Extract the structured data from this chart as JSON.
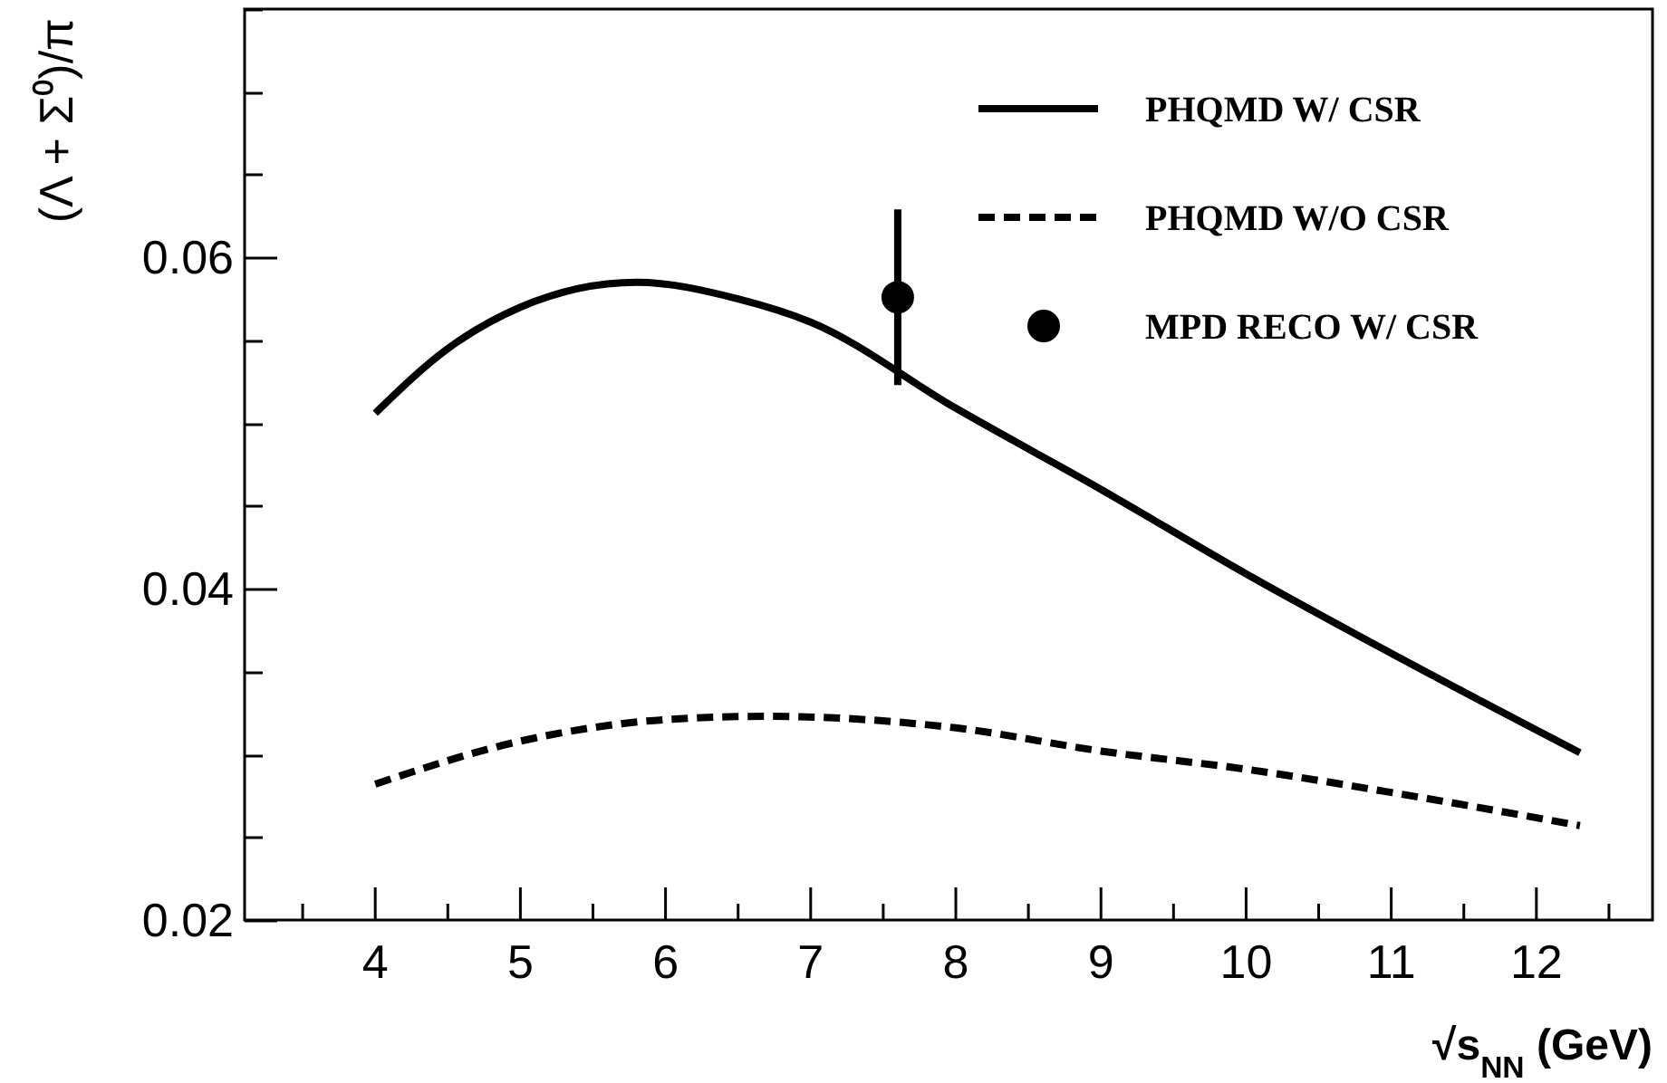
{
  "chart_data": {
    "type": "line",
    "xlabel": "√s$_{NN}$ (GeV)",
    "ylabel": "(Λ + Σ⁰)/π",
    "xlim": [
      3.1,
      12.8
    ],
    "ylim": [
      0.02,
      0.075
    ],
    "xticks": [
      {
        "value": 3.5,
        "label": null
      },
      4,
      {
        "value": 4.5,
        "label": null
      },
      5,
      {
        "value": 5.5,
        "label": null
      },
      6,
      {
        "value": 6.5,
        "label": null
      },
      7,
      {
        "value": 7.5,
        "label": null
      },
      8,
      {
        "value": 8.5,
        "label": null
      },
      9,
      {
        "value": 9.5,
        "label": null
      },
      10,
      {
        "value": 10.5,
        "label": null
      },
      11,
      {
        "value": 11.5,
        "label": null
      },
      12,
      {
        "value": 12.5,
        "label": null
      }
    ],
    "yticks": [
      0.02,
      {
        "value": 0.025,
        "label": null
      },
      {
        "value": 0.03,
        "label": null
      },
      {
        "value": 0.035,
        "label": null
      },
      0.04,
      {
        "value": 0.045,
        "label": null
      },
      {
        "value": 0.05,
        "label": null
      },
      {
        "value": 0.055,
        "label": null
      },
      0.06,
      {
        "value": 0.065,
        "label": null
      },
      {
        "value": 0.07,
        "label": null
      },
      {
        "value": 0.075,
        "label": null
      }
    ],
    "legend": "top right",
    "grid": false,
    "series": [
      {
        "name": "PHQMD W/  CSR",
        "type": "line",
        "color": "#000000",
        "line_style": "solid",
        "marker": "none",
        "x": [
          4,
          4.5,
          5,
          5.8,
          6.5,
          7,
          8,
          9,
          10,
          11,
          12.3
        ],
        "values": [
          0.0506,
          0.0545,
          0.057,
          0.0585,
          0.0575,
          0.0561,
          0.0509,
          0.046,
          0.0409,
          0.0361,
          0.0301
        ]
      },
      {
        "name": "PHQMD W/O CSR",
        "type": "line",
        "color": "#000000",
        "line_style": "dashed",
        "marker": "none",
        "x": [
          4,
          5,
          6,
          6.7,
          8,
          9,
          10,
          11,
          12.3
        ],
        "values": [
          0.0282,
          0.0308,
          0.0321,
          0.0323,
          0.0316,
          0.0302,
          0.0291,
          0.0277,
          0.0257
        ]
      },
      {
        "name": "MPD RECO W/  CSR",
        "type": "scatter",
        "color": "#000000",
        "marker": "circle",
        "x": [
          7.6
        ],
        "values": [
          0.0576
        ],
        "errors": [
          0.0053
        ]
      }
    ]
  }
}
